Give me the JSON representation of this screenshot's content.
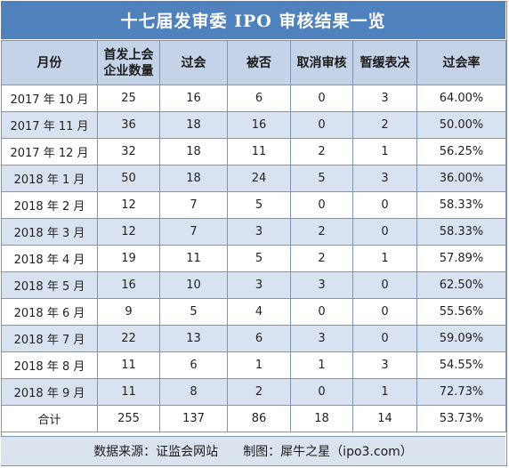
{
  "title": "十七届发审委 IPO 审核结果一览",
  "headers": {
    "month": "月份",
    "firms": "首发上会企业数量",
    "passed": "过会",
    "rejected": "被否",
    "cancelled": "取消审核",
    "postponed": "暂缓表决",
    "rate": "过会率"
  },
  "rows": [
    {
      "month": "2017 年 10 月",
      "firms": "25",
      "passed": "16",
      "rejected": "6",
      "cancelled": "0",
      "postponed": "3",
      "rate": "64.00%"
    },
    {
      "month": "2017 年 11 月",
      "firms": "36",
      "passed": "18",
      "rejected": "16",
      "cancelled": "0",
      "postponed": "2",
      "rate": "50.00%"
    },
    {
      "month": "2017 年 12 月",
      "firms": "32",
      "passed": "18",
      "rejected": "11",
      "cancelled": "2",
      "postponed": "1",
      "rate": "56.25%"
    },
    {
      "month": "2018 年 1 月",
      "firms": "50",
      "passed": "18",
      "rejected": "24",
      "cancelled": "5",
      "postponed": "3",
      "rate": "36.00%"
    },
    {
      "month": "2018 年 2 月",
      "firms": "12",
      "passed": "7",
      "rejected": "5",
      "cancelled": "0",
      "postponed": "0",
      "rate": "58.33%"
    },
    {
      "month": "2018 年 3 月",
      "firms": "12",
      "passed": "7",
      "rejected": "3",
      "cancelled": "2",
      "postponed": "0",
      "rate": "58.33%"
    },
    {
      "month": "2018 年 4 月",
      "firms": "19",
      "passed": "11",
      "rejected": "5",
      "cancelled": "2",
      "postponed": "1",
      "rate": "57.89%"
    },
    {
      "month": "2018 年 5 月",
      "firms": "16",
      "passed": "10",
      "rejected": "3",
      "cancelled": "3",
      "postponed": "0",
      "rate": "62.50%"
    },
    {
      "month": "2018 年 6 月",
      "firms": "9",
      "passed": "5",
      "rejected": "4",
      "cancelled": "0",
      "postponed": "0",
      "rate": "55.56%"
    },
    {
      "month": "2018 年 7 月",
      "firms": "22",
      "passed": "13",
      "rejected": "6",
      "cancelled": "3",
      "postponed": "0",
      "rate": "59.09%"
    },
    {
      "month": "2018 年 8 月",
      "firms": "11",
      "passed": "6",
      "rejected": "1",
      "cancelled": "1",
      "postponed": "3",
      "rate": "54.55%"
    },
    {
      "month": "2018 年 9 月",
      "firms": "11",
      "passed": "8",
      "rejected": "2",
      "cancelled": "0",
      "postponed": "1",
      "rate": "72.73%"
    }
  ],
  "total": {
    "month": "合计",
    "firms": "255",
    "passed": "137",
    "rejected": "86",
    "cancelled": "18",
    "postponed": "14",
    "rate": "53.73%"
  },
  "footer": {
    "source": "数据来源：证监会网站",
    "credit": "制图：犀牛之星（ipo3.com）"
  },
  "colors": {
    "header_bar": "#4f81bd",
    "column_header": "#c5d3e8",
    "stripe": "#d9e2f1",
    "border": "#7f96b2"
  }
}
